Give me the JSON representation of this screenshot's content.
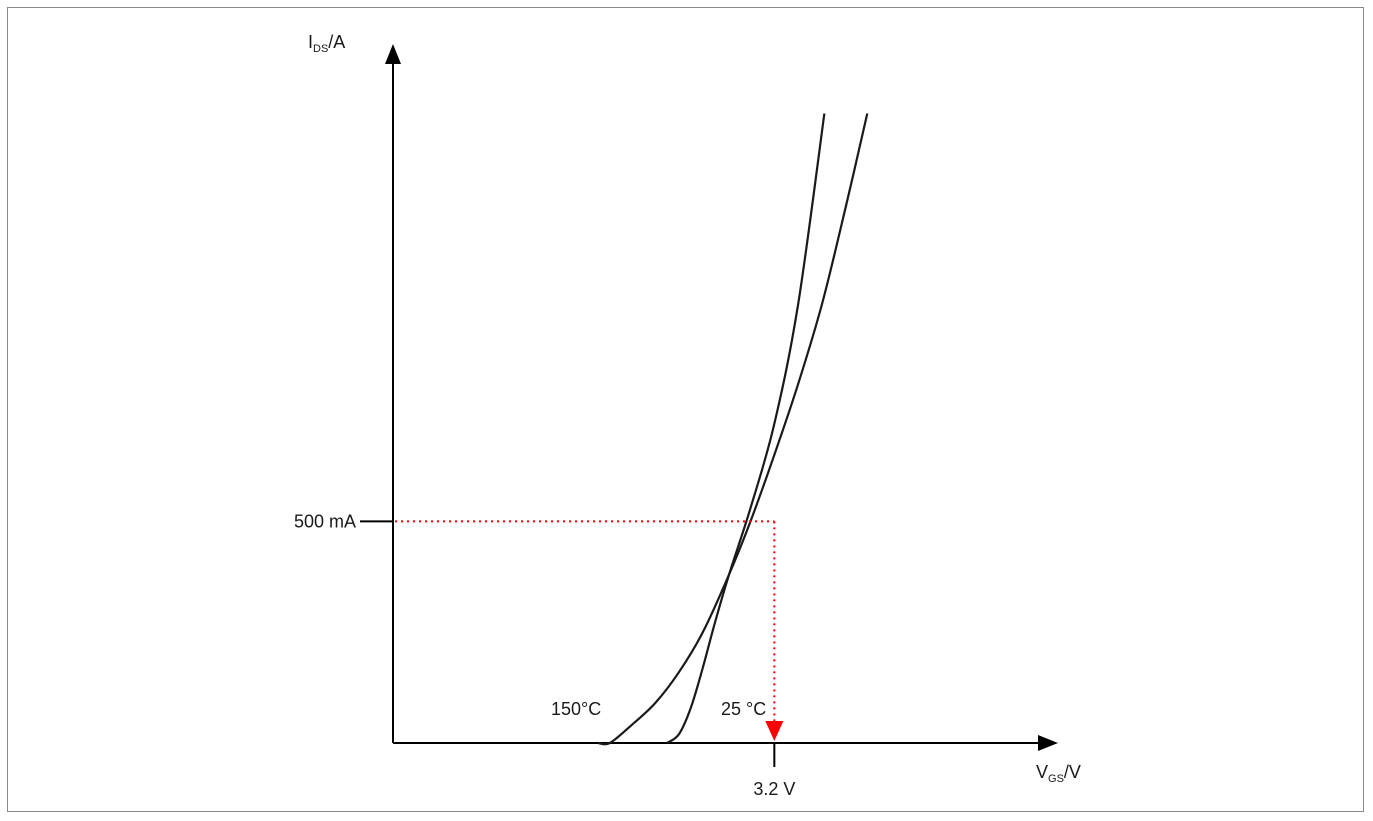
{
  "chart_data": {
    "type": "line",
    "y_axis": {
      "symbol": "I",
      "subscript": "DS",
      "unit": "/A"
    },
    "x_axis": {
      "symbol": "V",
      "subscript": "GS",
      "unit": "/V"
    },
    "y_marker": {
      "label": "500 mA",
      "value": 0.5
    },
    "x_marker": {
      "label": "3.2 V",
      "value": 3.2
    },
    "series": [
      {
        "name": "150°C",
        "x": [
          1.72,
          1.82,
          2.0,
          2.2,
          2.4,
          2.6,
          2.82,
          3.0,
          3.2,
          3.4,
          3.6,
          3.8,
          3.98
        ],
        "y": [
          0.0,
          0.0,
          0.04,
          0.09,
          0.16,
          0.25,
          0.38,
          0.5,
          0.65,
          0.81,
          0.99,
          1.21,
          1.42
        ]
      },
      {
        "name": "25 °C",
        "x": [
          2.3,
          2.4,
          2.5,
          2.6,
          2.7,
          2.82,
          3.0,
          3.2,
          3.4,
          3.62
        ],
        "y": [
          0.0,
          0.02,
          0.08,
          0.17,
          0.27,
          0.38,
          0.53,
          0.72,
          0.99,
          1.42
        ]
      }
    ],
    "xlim": [
      0,
      6
    ],
    "ylim": [
      0,
      1.5
    ],
    "grid": false,
    "colors": {
      "curve": "#1a1a1a",
      "marker": "#ff0000",
      "axis": "#000000"
    }
  }
}
